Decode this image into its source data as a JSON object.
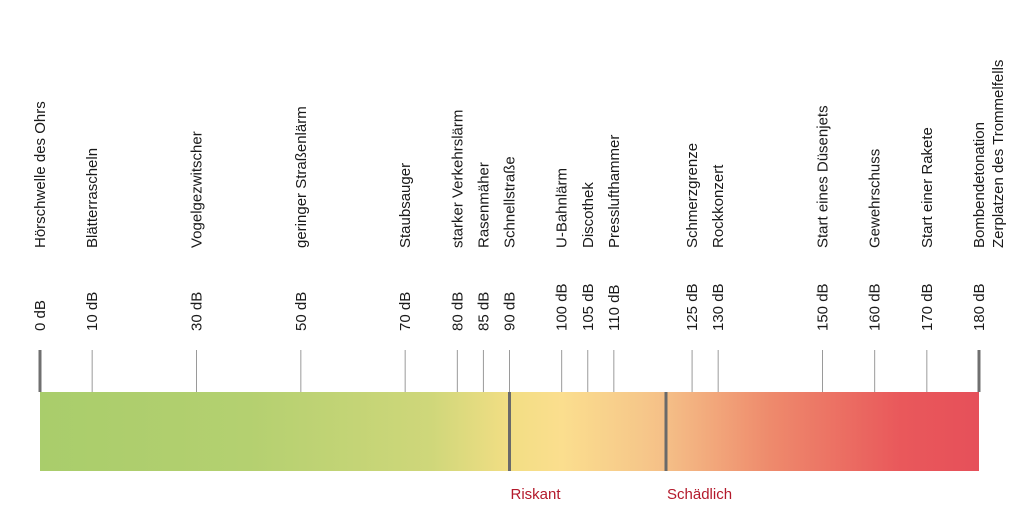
{
  "chart_data": {
    "type": "scale",
    "unit": "dB",
    "xlim": [
      0,
      180
    ],
    "points": [
      {
        "value": 0,
        "tick": "0 dB",
        "label": [
          "Hörschwelle des Ohrs"
        ]
      },
      {
        "value": 10,
        "tick": "10 dB",
        "label": [
          "Blätterrascheln"
        ]
      },
      {
        "value": 30,
        "tick": "30 dB",
        "label": [
          "Vogelgezwitscher"
        ]
      },
      {
        "value": 50,
        "tick": "50 dB",
        "label": [
          "geringer Straßenlärm"
        ]
      },
      {
        "value": 70,
        "tick": "70 dB",
        "label": [
          "Staubsauger"
        ]
      },
      {
        "value": 80,
        "tick": "80 dB",
        "label": [
          "starker Verkehrslärm"
        ]
      },
      {
        "value": 85,
        "tick": "85 dB",
        "label": [
          "Rasenmäher"
        ]
      },
      {
        "value": 90,
        "tick": "90 dB",
        "label": [
          "Schnellstraße"
        ]
      },
      {
        "value": 100,
        "tick": "100 dB",
        "label": [
          "U-Bahnlärm"
        ]
      },
      {
        "value": 105,
        "tick": "105 dB",
        "label": [
          "Discothek"
        ]
      },
      {
        "value": 110,
        "tick": "110 dB",
        "label": [
          "Presslufthammer"
        ]
      },
      {
        "value": 125,
        "tick": "125 dB",
        "label": [
          "Schmerzgrenze"
        ]
      },
      {
        "value": 130,
        "tick": "130 dB",
        "label": [
          "Rockkonzert"
        ]
      },
      {
        "value": 150,
        "tick": "150 dB",
        "label": [
          "Start eines Düsenjets"
        ]
      },
      {
        "value": 160,
        "tick": "160 dB",
        "label": [
          "Gewehrschuss"
        ]
      },
      {
        "value": 170,
        "tick": "170 dB",
        "label": [
          "Start einer Rakete"
        ]
      },
      {
        "value": 180,
        "tick": "180 dB",
        "label": [
          "Bombendetonation",
          "Zerplatzen des Trommelfells"
        ]
      }
    ],
    "zones": [
      {
        "name": "Riskant",
        "from": 90
      },
      {
        "name": "Schädlich",
        "from": 120
      }
    ],
    "gradient": [
      {
        "value": 0,
        "color": "#a9cd6b"
      },
      {
        "value": 40,
        "color": "#b4d070"
      },
      {
        "value": 75,
        "color": "#cfd77a"
      },
      {
        "value": 90,
        "color": "#f2de84"
      },
      {
        "value": 100,
        "color": "#fbde8e"
      },
      {
        "value": 115,
        "color": "#f6c88a"
      },
      {
        "value": 120,
        "color": "#f5bf87"
      },
      {
        "value": 140,
        "color": "#ee8a6c"
      },
      {
        "value": 165,
        "color": "#e9585b"
      },
      {
        "value": 180,
        "color": "#e6505a"
      }
    ],
    "colors": {
      "zone_label": "#b3192b",
      "tick": "#9a9a9a",
      "boundary": "#6a6a6a"
    }
  }
}
